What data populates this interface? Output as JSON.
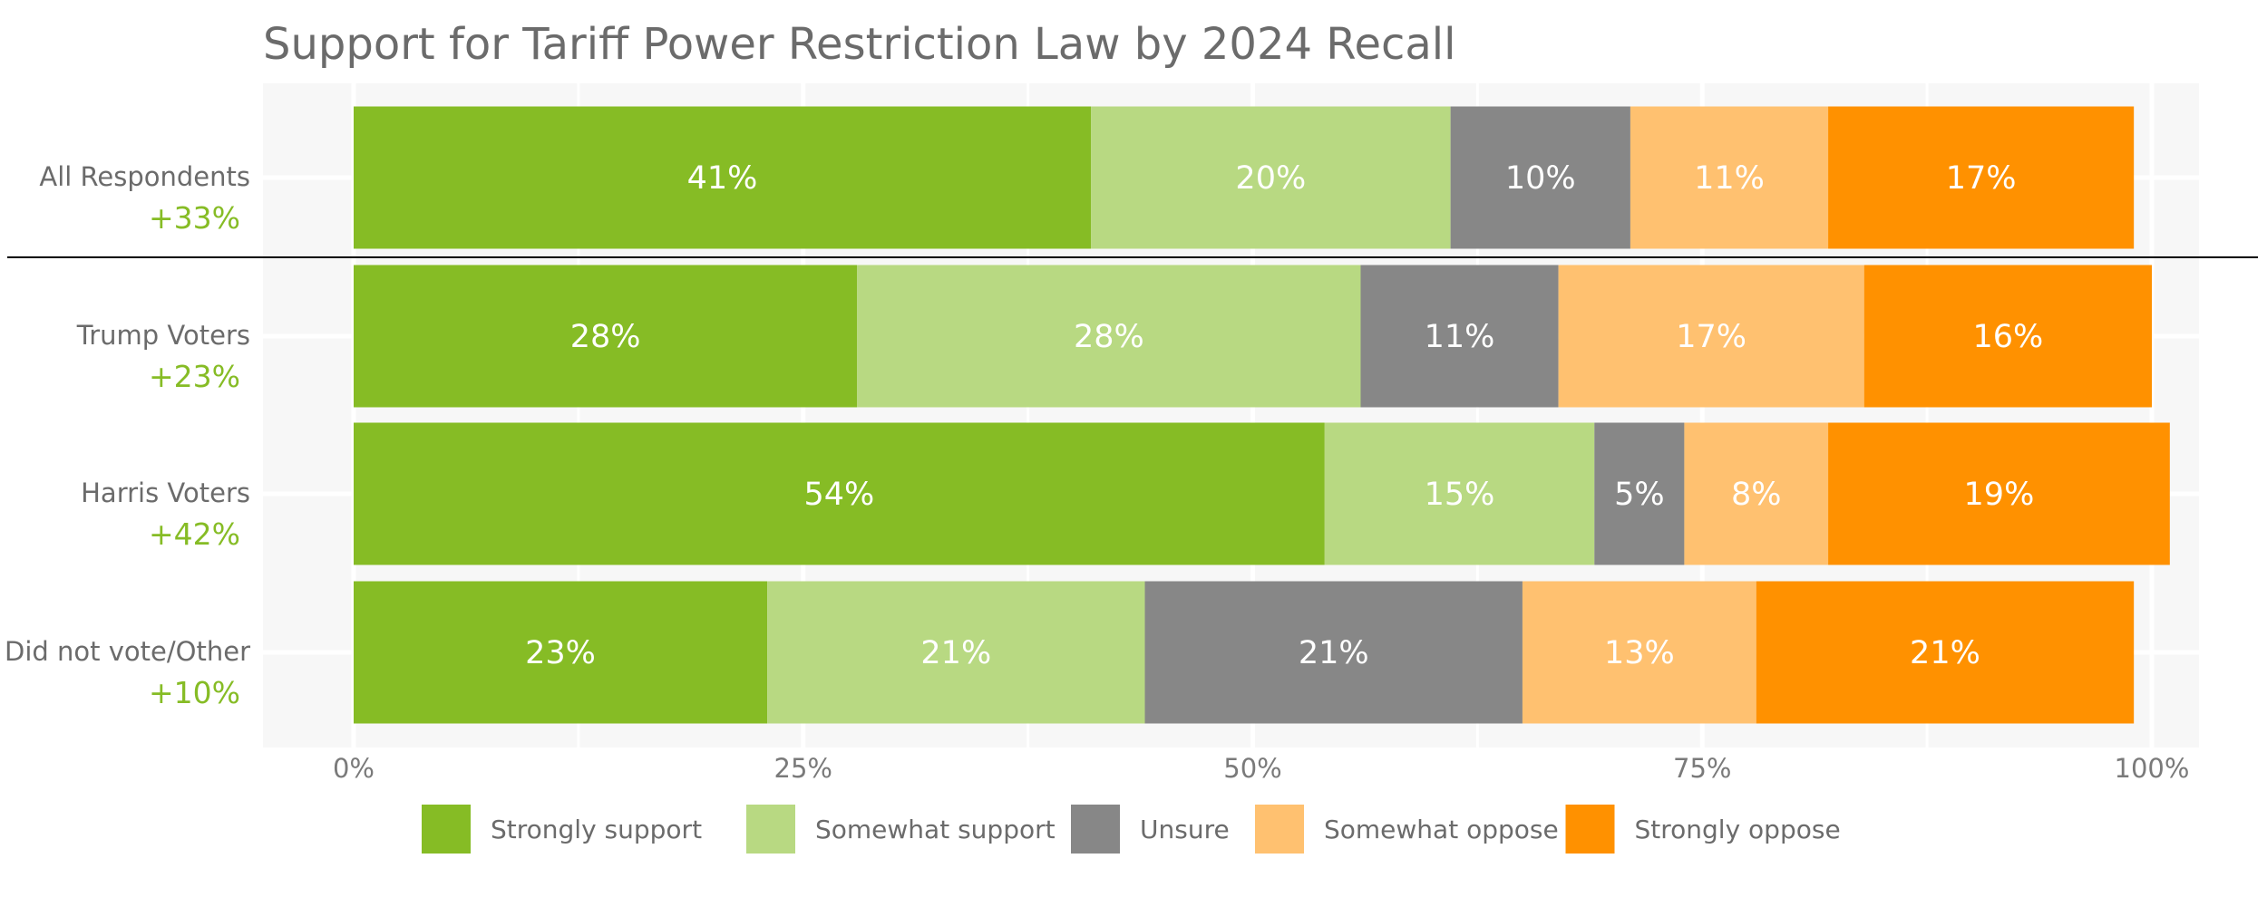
{
  "chart_data": {
    "type": "bar",
    "orientation": "horizontal",
    "stacked": true,
    "title": "Support for Tariff Power Restriction Law by 2024 Recall",
    "xlabel": "",
    "ylabel": "",
    "xlim": [
      0,
      100
    ],
    "x_ticks": [
      "0%",
      "25%",
      "50%",
      "75%",
      "100%"
    ],
    "grid": true,
    "legend_position": "bottom",
    "categories": [
      "All Respondents",
      "Trump Voters",
      "Harris Voters",
      "Did not vote/Other"
    ],
    "net_labels": [
      "+33%",
      "+23%",
      "+42%",
      "+10%"
    ],
    "series": [
      {
        "name": "Strongly support",
        "color": "#86bc25",
        "values": [
          41,
          28,
          54,
          23
        ],
        "labels": [
          "41%",
          "28%",
          "54%",
          "23%"
        ]
      },
      {
        "name": "Somewhat support",
        "color": "#b8d982",
        "values": [
          20,
          28,
          15,
          21
        ],
        "labels": [
          "20%",
          "28%",
          "15%",
          "21%"
        ]
      },
      {
        "name": "Unsure",
        "color": "#878787",
        "values": [
          10,
          11,
          5,
          21
        ],
        "labels": [
          "10%",
          "11%",
          "5%",
          "21%"
        ]
      },
      {
        "name": "Somewhat oppose",
        "color": "#ffc170",
        "values": [
          11,
          17,
          8,
          13
        ],
        "labels": [
          "11%",
          "17%",
          "8%",
          "13%"
        ]
      },
      {
        "name": "Strongly oppose",
        "color": "#ff9100",
        "values": [
          17,
          16,
          19,
          21
        ],
        "labels": [
          "17%",
          "16%",
          "19%",
          "21%"
        ]
      }
    ]
  }
}
